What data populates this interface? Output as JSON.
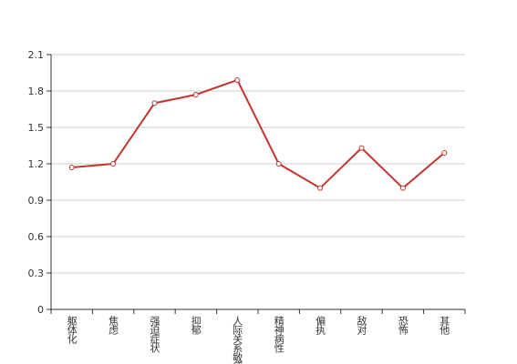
{
  "chart_data": {
    "type": "line",
    "categories": [
      "躯体化",
      "焦虑",
      "强迫症状",
      "抑郁",
      "人际关系敏感",
      "精神病性",
      "偏执",
      "敌对",
      "恐怖",
      "其他"
    ],
    "values": [
      1.17,
      1.2,
      1.7,
      1.77,
      1.89,
      1.2,
      1.0,
      1.33,
      1.0,
      1.29
    ],
    "color": "#c23531",
    "ylim": [
      0,
      2.1
    ],
    "yticks": [
      0,
      0.3,
      0.6,
      0.9,
      1.2,
      1.5,
      1.8,
      2.1
    ],
    "grid": true
  }
}
